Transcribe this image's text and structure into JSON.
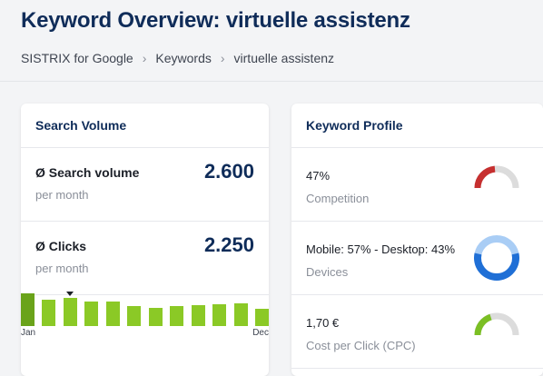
{
  "header": {
    "title": "Keyword Overview: virtuelle assistenz",
    "breadcrumb": [
      "SISTRIX for Google",
      "Keywords",
      "virtuelle assistenz"
    ]
  },
  "search_volume_card": {
    "title": "Search Volume",
    "search_volume": {
      "label": "Ø Search volume",
      "value": "2.600",
      "sub": "per month"
    },
    "clicks": {
      "label": "Ø Clicks",
      "value": "2.250",
      "sub": "per month"
    },
    "chart": {
      "x_start": "Jan",
      "x_end": "Dec",
      "relative_volume": [
        1.0,
        0.8,
        0.85,
        0.75,
        0.75,
        0.6,
        0.55,
        0.62,
        0.65,
        0.68,
        0.7,
        0.52
      ],
      "marker_month_index": 2,
      "colors": {
        "bar": "#8bc926",
        "bar_highlight": "#6aa31a"
      }
    }
  },
  "keyword_profile_card": {
    "title": "Keyword Profile",
    "competition": {
      "value": "47%",
      "label": "Competition",
      "fraction": 0.47,
      "color": "#c62f2f"
    },
    "devices": {
      "value": "Mobile: 57% - Desktop: 43%",
      "label": "Devices",
      "mobile_fraction": 0.57,
      "colors": [
        "#1f6fd6",
        "#a9cdf5"
      ]
    },
    "cpc": {
      "value": "1,70 €",
      "label": "Cost per Click (CPC)",
      "fraction": 0.4,
      "color": "#7bbf24"
    }
  }
}
